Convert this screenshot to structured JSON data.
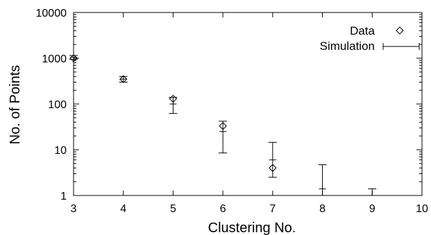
{
  "chart_data": {
    "type": "scatter",
    "title": "",
    "xlabel": "Clustering No.",
    "ylabel": "No. of Points",
    "xlim": [
      3,
      10
    ],
    "ylim": [
      1,
      10000
    ],
    "yscale": "log",
    "grid": false,
    "legend_position": "top-right",
    "x_ticks": [
      3,
      4,
      5,
      6,
      7,
      8,
      9,
      10
    ],
    "x_tick_labels": [
      "3",
      "4",
      "5",
      "6",
      "7",
      "8",
      "9",
      "10"
    ],
    "y_ticks": [
      1,
      10,
      100,
      1000,
      10000
    ],
    "y_tick_labels": [
      "1",
      "10",
      "100",
      "1000",
      "10000"
    ],
    "series": [
      {
        "name": "Data",
        "marker": "diamond",
        "points": [
          {
            "x": 3,
            "y": 1000
          },
          {
            "x": 4,
            "y": 350
          },
          {
            "x": 5,
            "y": 130
          },
          {
            "x": 6,
            "y": 33
          },
          {
            "x": 7,
            "y": 4
          }
        ]
      },
      {
        "name": "Simulation",
        "marker": "errorbar",
        "points": [
          {
            "x": 3,
            "y": 1050,
            "ylow": 950,
            "yhigh": 1150
          },
          {
            "x": 4,
            "y": 350,
            "ylow": 300,
            "yhigh": 400
          },
          {
            "x": 5,
            "y": 100,
            "ylow": 62,
            "yhigh": 140
          },
          {
            "x": 6,
            "y": 25,
            "ylow": 8.5,
            "yhigh": 42
          },
          {
            "x": 7,
            "y": 6,
            "ylow": 2.5,
            "yhigh": 14.5
          },
          {
            "x": 8,
            "y": 1.4,
            "ylow": 1,
            "yhigh": 4.7
          },
          {
            "x": 9,
            "y": 1,
            "ylow": 1,
            "yhigh": 1.4
          }
        ]
      }
    ]
  }
}
